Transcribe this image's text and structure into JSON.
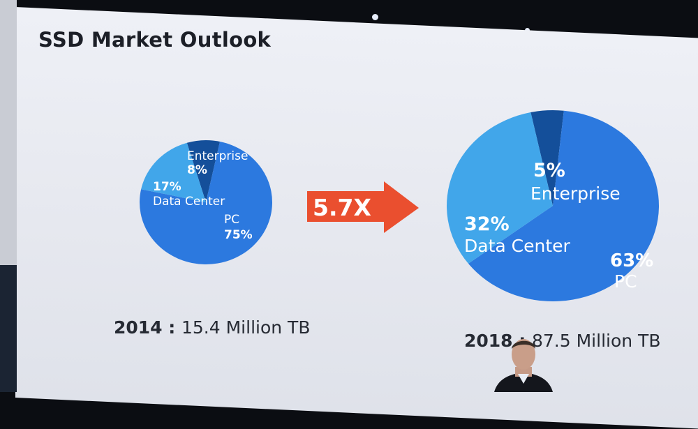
{
  "slide": {
    "title": "SSD Market Outlook",
    "growth_label": "5.7X"
  },
  "colors": {
    "pc": "#2c79df",
    "data_center": "#41a6ea",
    "enterprise": "#144f9a",
    "arrow": "#ea4f2f",
    "background": "#e9ebf1"
  },
  "chart_data": [
    {
      "type": "pie",
      "year": "2014",
      "total": "15.4 Million TB",
      "slices": [
        {
          "label": "Enterprise",
          "value": 8,
          "value_label": "8%"
        },
        {
          "label": "PC",
          "value": 75,
          "value_label": "75%"
        },
        {
          "label": "Data Center",
          "value": 17,
          "value_label": "17%"
        }
      ]
    },
    {
      "type": "pie",
      "year": "2018",
      "total": "87.5 Million TB",
      "slices": [
        {
          "label": "Enterprise",
          "value": 5,
          "value_label": "5%"
        },
        {
          "label": "PC",
          "value": 63,
          "value_label": "63%"
        },
        {
          "label": "Data Center",
          "value": 32,
          "value_label": "32%"
        }
      ]
    }
  ]
}
